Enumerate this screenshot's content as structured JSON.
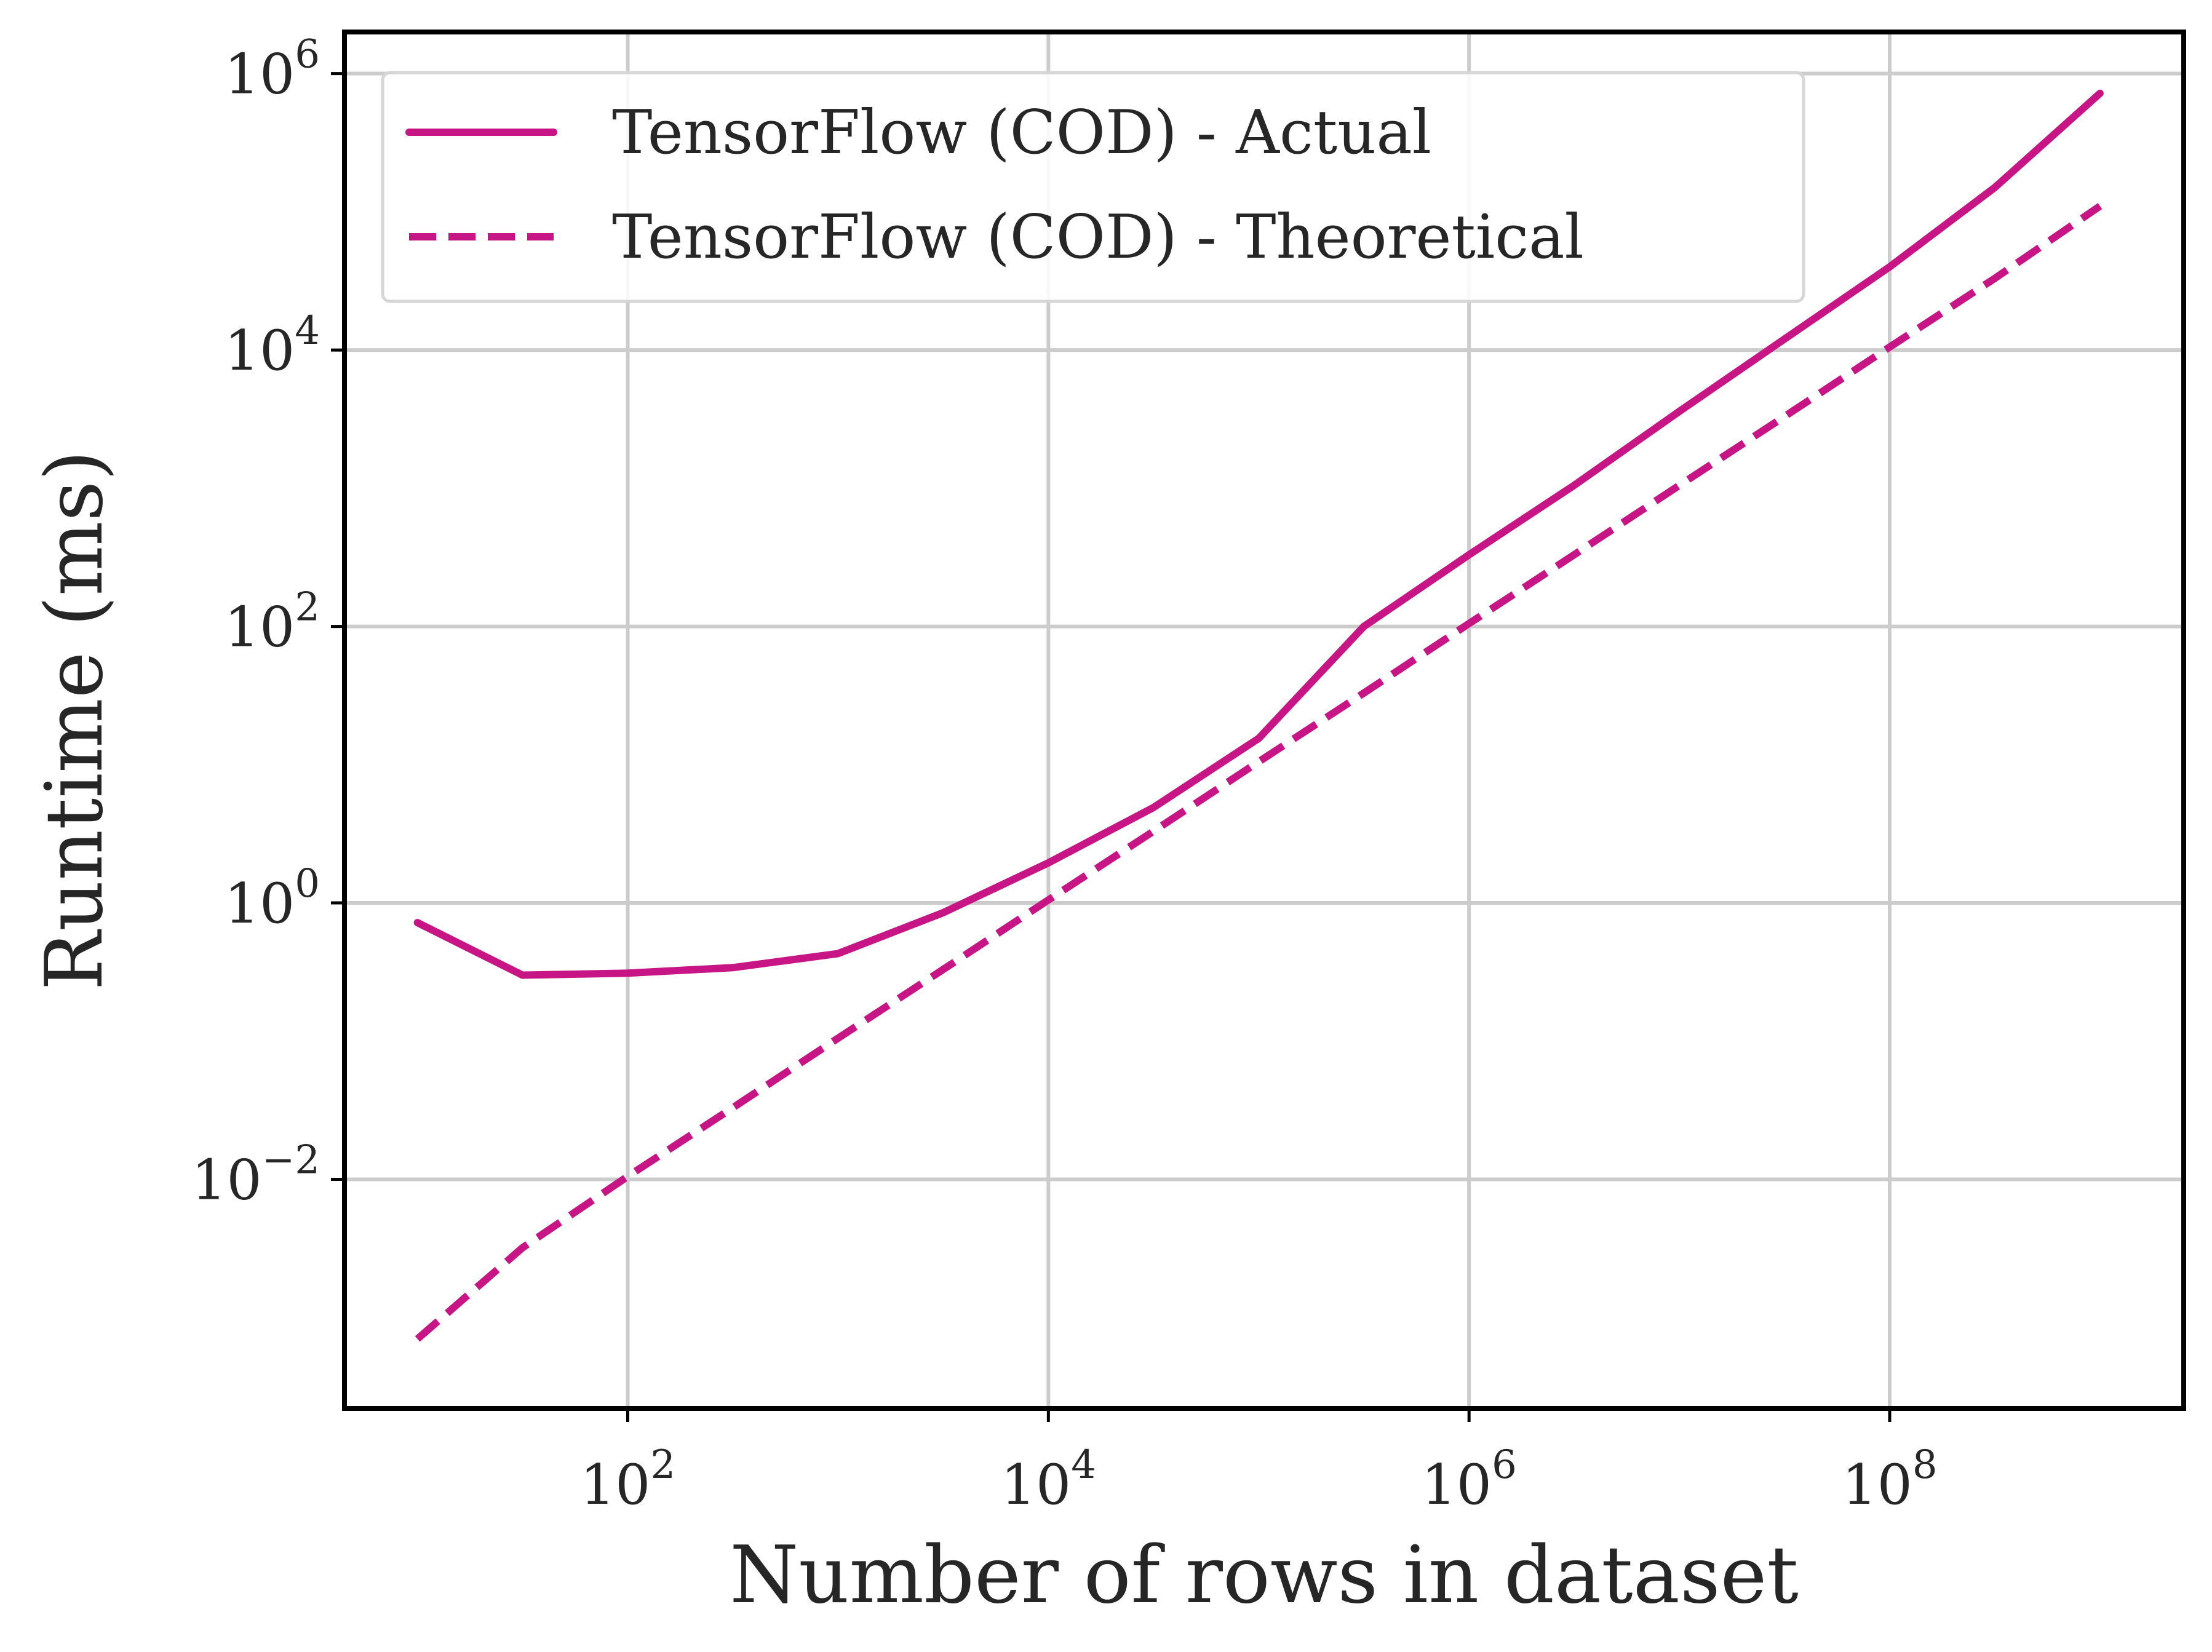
{
  "chart_data": {
    "type": "line",
    "xlabel": "Number of rows in dataset",
    "ylabel": "Runtime (ms)",
    "xscale": "log",
    "yscale": "log",
    "xlim": [
      4.5,
      2500000000
    ],
    "ylim": [
      0.00022,
      2000000
    ],
    "grid": true,
    "legend_position": "top-left",
    "xticks": [
      {
        "value": 100,
        "base": "10",
        "exp": "2"
      },
      {
        "value": 10000,
        "base": "10",
        "exp": "4"
      },
      {
        "value": 1000000,
        "base": "10",
        "exp": "6"
      },
      {
        "value": 100000000,
        "base": "10",
        "exp": "8"
      }
    ],
    "yticks": [
      {
        "value": 0.01,
        "base": "10",
        "exp": "−2"
      },
      {
        "value": 1,
        "base": "10",
        "exp": "0"
      },
      {
        "value": 100,
        "base": "10",
        "exp": "2"
      },
      {
        "value": 10000,
        "base": "10",
        "exp": "4"
      },
      {
        "value": 1000000,
        "base": "10",
        "exp": "6"
      }
    ],
    "series": [
      {
        "name": "TensorFlow (COD) - Actual",
        "style": "solid",
        "color": "#c71585",
        "x": [
          10,
          31.6,
          100,
          316,
          1000,
          3160,
          10000,
          31600,
          100000,
          316000,
          1000000,
          3160000,
          10000000,
          31600000,
          100000000,
          316000000,
          1000000000
        ],
        "y": [
          0.72,
          0.3,
          0.31,
          0.34,
          0.43,
          0.85,
          1.95,
          4.9,
          15.5,
          100,
          330,
          1050,
          3600,
          12000,
          40000,
          150000,
          720000
        ]
      },
      {
        "name": "TensorFlow (COD) - Theoretical",
        "style": "dashed",
        "color": "#c71585",
        "x": [
          10,
          31.6,
          100,
          316,
          1000,
          3160,
          10000,
          31600,
          100000,
          316000,
          1000000,
          3160000,
          10000000,
          31600000,
          100000000,
          316000000,
          1000000000
        ],
        "y": [
          0.0007,
          0.0032,
          0.0105,
          0.033,
          0.105,
          0.33,
          1.05,
          3.3,
          10.5,
          33,
          105,
          330,
          1050,
          3300,
          10500,
          33000,
          110000
        ]
      }
    ]
  }
}
